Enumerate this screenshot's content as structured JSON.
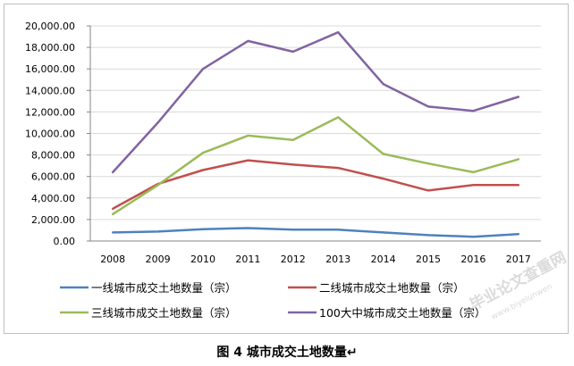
{
  "chart_data": {
    "type": "line",
    "title": "",
    "xlabel": "",
    "ylabel": "",
    "categories": [
      "2008",
      "2009",
      "2010",
      "2011",
      "2012",
      "2013",
      "2014",
      "2015",
      "2016",
      "2017"
    ],
    "ylim": [
      0,
      20000
    ],
    "yticks": [
      "0.00",
      "2,000.00",
      "4,000.00",
      "6,000.00",
      "8,000.00",
      "10,000.00",
      "12,000.00",
      "14,000.00",
      "16,000.00",
      "18,000.00",
      "20,000.00"
    ],
    "grid": true,
    "legend_position": "bottom",
    "series": [
      {
        "name": "一线城市成交土地数量（宗）",
        "color": "#4f81bd",
        "values": [
          800,
          880,
          1100,
          1200,
          1050,
          1050,
          800,
          550,
          400,
          650
        ]
      },
      {
        "name": "二线城市成交土地数量（宗）",
        "color": "#c0504d",
        "values": [
          3000,
          5300,
          6600,
          7500,
          7100,
          6800,
          5800,
          4700,
          5200,
          5200
        ]
      },
      {
        "name": "三线城市成交土地数量（宗）",
        "color": "#9bbb59",
        "values": [
          2500,
          5200,
          8200,
          9800,
          9400,
          11500,
          8100,
          7200,
          6400,
          7600
        ]
      },
      {
        "name": "100大中城市成交土地数量（宗）",
        "color": "#8064a2",
        "values": [
          6400,
          11000,
          16000,
          18600,
          17600,
          19400,
          14600,
          12500,
          12100,
          13400
        ]
      }
    ]
  },
  "caption": "图 4 城市成交土地数量↵",
  "watermark": {
    "main": "毕业论文查重网",
    "sub": "www.biyelunwen"
  }
}
